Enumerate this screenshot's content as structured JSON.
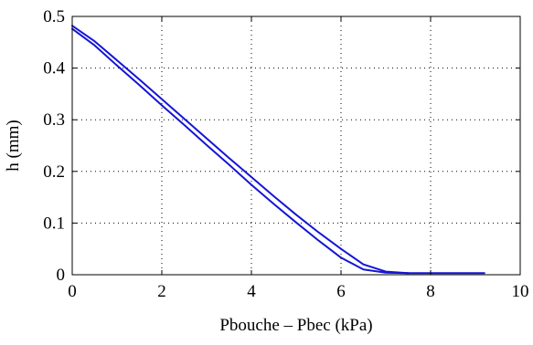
{
  "chart_data": {
    "type": "line",
    "title": "",
    "xlabel": "Pbouche – Pbec (kPa)",
    "ylabel": "h  (mm)",
    "xlim": [
      0,
      10
    ],
    "ylim": [
      0,
      0.5
    ],
    "x_ticks": [
      0,
      2,
      4,
      6,
      8,
      10
    ],
    "x_tick_labels": [
      "0",
      "2",
      "4",
      "6",
      "8",
      "10"
    ],
    "y_ticks": [
      0,
      0.1,
      0.2,
      0.3,
      0.4,
      0.5
    ],
    "y_tick_labels": [
      "0",
      "0.1",
      "0.2",
      "0.3",
      "0.4",
      "0.5"
    ],
    "grid": "dotted",
    "line_color": "#1515d6",
    "series": [
      {
        "x": [
          0,
          0.5,
          1,
          1.5,
          2,
          2.5,
          3,
          3.5,
          4,
          4.5,
          5,
          5.5,
          6,
          6.5,
          7,
          7.5,
          8,
          8.5,
          9,
          9.2
        ],
        "y": [
          0.482,
          0.452,
          0.415,
          0.378,
          0.34,
          0.302,
          0.264,
          0.226,
          0.189,
          0.152,
          0.116,
          0.082,
          0.05,
          0.02,
          0.006,
          0.003,
          0.003,
          0.003,
          0.003,
          0.003
        ]
      },
      {
        "x": [
          0,
          0.5,
          1,
          1.5,
          2,
          2.5,
          3,
          3.5,
          4,
          4.5,
          5,
          5.5,
          6,
          6.5,
          7,
          7.5
        ],
        "y": [
          0.476,
          0.444,
          0.405,
          0.367,
          0.328,
          0.29,
          0.251,
          0.213,
          0.174,
          0.137,
          0.101,
          0.066,
          0.033,
          0.01,
          0.004,
          0.003
        ]
      }
    ]
  }
}
